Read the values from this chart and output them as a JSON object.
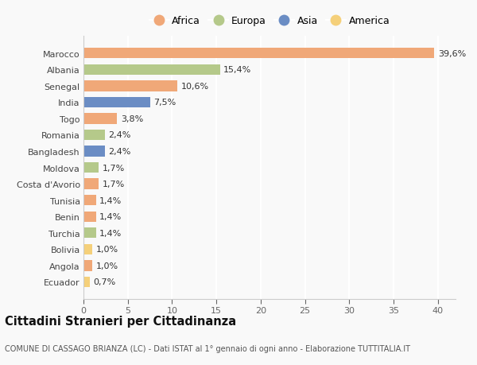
{
  "countries": [
    "Marocco",
    "Albania",
    "Senegal",
    "India",
    "Togo",
    "Romania",
    "Bangladesh",
    "Moldova",
    "Costa d'Avorio",
    "Tunisia",
    "Benin",
    "Turchia",
    "Bolivia",
    "Angola",
    "Ecuador"
  ],
  "values": [
    39.6,
    15.4,
    10.6,
    7.5,
    3.8,
    2.4,
    2.4,
    1.7,
    1.7,
    1.4,
    1.4,
    1.4,
    1.0,
    1.0,
    0.7
  ],
  "labels": [
    "39,6%",
    "15,4%",
    "10,6%",
    "7,5%",
    "3,8%",
    "2,4%",
    "2,4%",
    "1,7%",
    "1,7%",
    "1,4%",
    "1,4%",
    "1,4%",
    "1,0%",
    "1,0%",
    "0,7%"
  ],
  "continents": [
    "Africa",
    "Europa",
    "Africa",
    "Asia",
    "Africa",
    "Europa",
    "Asia",
    "Europa",
    "Africa",
    "Africa",
    "Africa",
    "Europa",
    "America",
    "Africa",
    "America"
  ],
  "continent_colors": {
    "Africa": "#F0A878",
    "Europa": "#B5C98A",
    "Asia": "#6B8DC4",
    "America": "#F5D07A"
  },
  "legend_order": [
    "Africa",
    "Europa",
    "Asia",
    "America"
  ],
  "title": "Cittadini Stranieri per Cittadinanza",
  "subtitle": "COMUNE DI CASSAGO BRIANZA (LC) - Dati ISTAT al 1° gennaio di ogni anno - Elaborazione TUTTITALIA.IT",
  "xlim": [
    0,
    42
  ],
  "xticks": [
    0,
    5,
    10,
    15,
    20,
    25,
    30,
    35,
    40
  ],
  "background_color": "#f9f9f9",
  "grid_color": "#ffffff",
  "bar_height": 0.65,
  "label_fontsize": 8,
  "title_fontsize": 10.5,
  "subtitle_fontsize": 7,
  "tick_fontsize": 8,
  "legend_fontsize": 9
}
